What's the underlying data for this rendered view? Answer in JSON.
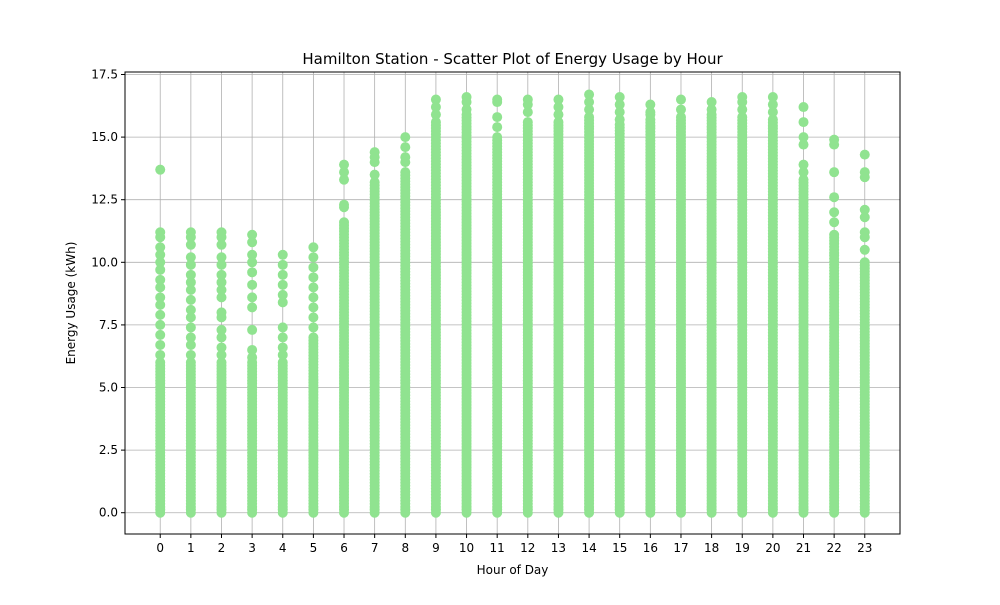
{
  "chart_data": {
    "type": "scatter",
    "title": "Hamilton Station - Scatter Plot of Energy Usage by Hour",
    "xlabel": "Hour of Day",
    "ylabel": "Energy Usage (kWh)",
    "xlim": [
      -1.15,
      24.15
    ],
    "ylim": [
      -0.85,
      17.6
    ],
    "x_ticks": [
      0,
      1,
      2,
      3,
      4,
      5,
      6,
      7,
      8,
      9,
      10,
      11,
      12,
      13,
      14,
      15,
      16,
      17,
      18,
      19,
      20,
      21,
      22,
      23
    ],
    "x_tick_labels": [
      "0",
      "1",
      "2",
      "3",
      "4",
      "5",
      "6",
      "7",
      "8",
      "9",
      "10",
      "11",
      "12",
      "13",
      "14",
      "15",
      "16",
      "17",
      "18",
      "19",
      "20",
      "21",
      "22",
      "23"
    ],
    "y_ticks": [
      0,
      2.5,
      5,
      7.5,
      10,
      12.5,
      15,
      17.5
    ],
    "y_tick_labels": [
      "0.0",
      "2.5",
      "5.0",
      "7.5",
      "10.0",
      "12.5",
      "15.0",
      "17.5"
    ],
    "grid": true,
    "marker_color": "#90e390",
    "series": [
      {
        "hours": [
          {
            "x": 0,
            "dense_range": [
              0,
              6.0
            ],
            "values": [
              6.3,
              6.7,
              7.1,
              7.5,
              7.9,
              8.3,
              8.6,
              9.0,
              9.3,
              9.7,
              10.0,
              10.3,
              10.6,
              11.0,
              11.2,
              13.7
            ]
          },
          {
            "x": 1,
            "dense_range": [
              0,
              6.0
            ],
            "values": [
              6.3,
              6.7,
              7.0,
              7.4,
              7.8,
              8.1,
              8.5,
              8.9,
              9.2,
              9.5,
              9.9,
              10.2,
              10.7,
              11.0,
              11.2
            ]
          },
          {
            "x": 2,
            "dense_range": [
              0,
              6.0
            ],
            "values": [
              6.3,
              6.6,
              7.0,
              7.3,
              7.8,
              8.0,
              8.6,
              8.9,
              9.2,
              9.5,
              9.9,
              10.2,
              10.7,
              11.0,
              11.2
            ]
          },
          {
            "x": 3,
            "dense_range": [
              0,
              6.0
            ],
            "values": [
              6.2,
              6.5,
              7.3,
              8.2,
              8.6,
              9.1,
              9.6,
              10.0,
              10.3,
              10.8,
              11.1
            ]
          },
          {
            "x": 4,
            "dense_range": [
              0,
              6.0
            ],
            "values": [
              6.3,
              6.6,
              7.0,
              7.4,
              8.4,
              8.7,
              9.1,
              9.5,
              9.9,
              10.3
            ]
          },
          {
            "x": 5,
            "dense_range": [
              0,
              7.0
            ],
            "values": [
              7.4,
              7.8,
              8.2,
              8.6,
              9.0,
              9.4,
              9.8,
              10.2,
              10.6
            ]
          },
          {
            "x": 6,
            "dense_range": [
              0,
              11.6
            ],
            "values": [
              12.2,
              12.3,
              13.3,
              13.6,
              13.9
            ]
          },
          {
            "x": 7,
            "dense_range": [
              0,
              13.2
            ],
            "values": [
              13.5,
              14.0,
              14.2,
              14.4
            ]
          },
          {
            "x": 8,
            "dense_range": [
              0,
              13.6
            ],
            "values": [
              14.0,
              14.2,
              14.6,
              15.0
            ]
          },
          {
            "x": 9,
            "dense_range": [
              0,
              15.6
            ],
            "values": [
              15.9,
              16.2,
              16.5
            ]
          },
          {
            "x": 10,
            "dense_range": [
              0,
              15.9
            ],
            "values": [
              16.1,
              16.4,
              16.6
            ]
          },
          {
            "x": 11,
            "dense_range": [
              0,
              15.0
            ],
            "values": [
              15.4,
              15.8,
              16.4,
              16.5
            ]
          },
          {
            "x": 12,
            "dense_range": [
              0,
              15.6
            ],
            "values": [
              16.0,
              16.3,
              16.5
            ]
          },
          {
            "x": 13,
            "dense_range": [
              0,
              15.6
            ],
            "values": [
              15.9,
              16.2,
              16.5
            ]
          },
          {
            "x": 14,
            "dense_range": [
              0,
              15.8
            ],
            "values": [
              16.1,
              16.4,
              16.7
            ]
          },
          {
            "x": 15,
            "dense_range": [
              0,
              15.5
            ],
            "values": [
              15.7,
              16.0,
              16.3,
              16.6
            ]
          },
          {
            "x": 16,
            "dense_range": [
              0,
              15.7
            ],
            "values": [
              15.9,
              16.0,
              16.3
            ]
          },
          {
            "x": 17,
            "dense_range": [
              0,
              15.8
            ],
            "values": [
              16.1,
              16.5
            ]
          },
          {
            "x": 18,
            "dense_range": [
              0,
              15.9
            ],
            "values": [
              16.1,
              16.4
            ]
          },
          {
            "x": 19,
            "dense_range": [
              0,
              15.8
            ],
            "values": [
              16.1,
              16.4,
              16.6
            ]
          },
          {
            "x": 20,
            "dense_range": [
              0,
              15.7
            ],
            "values": [
              16.0,
              16.3,
              16.6
            ]
          },
          {
            "x": 21,
            "dense_range": [
              0,
              13.3
            ],
            "values": [
              13.6,
              13.9,
              14.7,
              15.0,
              15.6,
              16.2
            ]
          },
          {
            "x": 22,
            "dense_range": [
              0,
              11.1
            ],
            "values": [
              11.6,
              12.0,
              12.6,
              13.6,
              14.7,
              14.9
            ]
          },
          {
            "x": 23,
            "dense_range": [
              0,
              10.0
            ],
            "values": [
              10.5,
              11.0,
              11.2,
              11.8,
              12.1,
              13.4,
              13.6,
              14.3
            ]
          }
        ]
      }
    ]
  }
}
